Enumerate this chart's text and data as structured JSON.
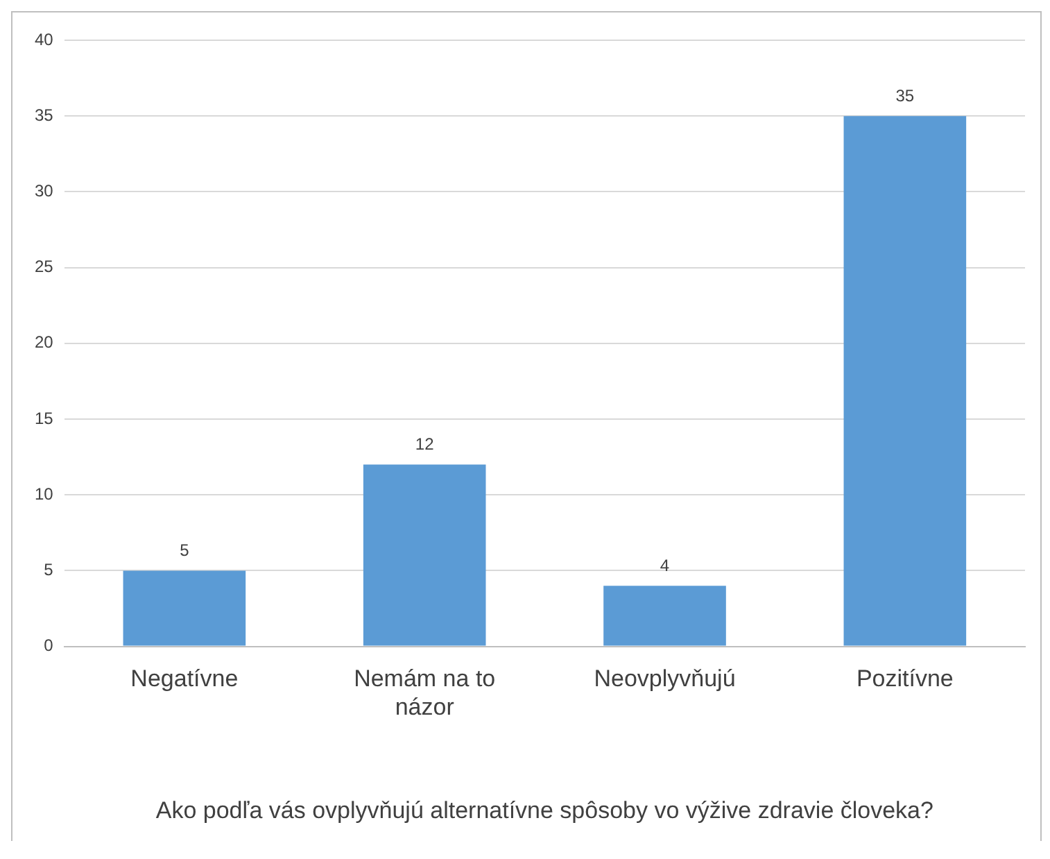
{
  "chart_data": {
    "type": "bar",
    "xlabel": "Ako podľa vás ovplyvňujú alternatívne spôsoby vo výžive zdravie človeka?",
    "categories": [
      "Negatívne",
      "Nemám na to názor",
      "Neovplyvňujú",
      "Pozitívne"
    ],
    "values": [
      5,
      12,
      4,
      35
    ],
    "color": "#5b9bd5",
    "ylim": [
      0,
      40
    ],
    "yticks": [
      0,
      5,
      10,
      15,
      20,
      25,
      30,
      35,
      40
    ],
    "grid": "y",
    "data_labels": true
  }
}
